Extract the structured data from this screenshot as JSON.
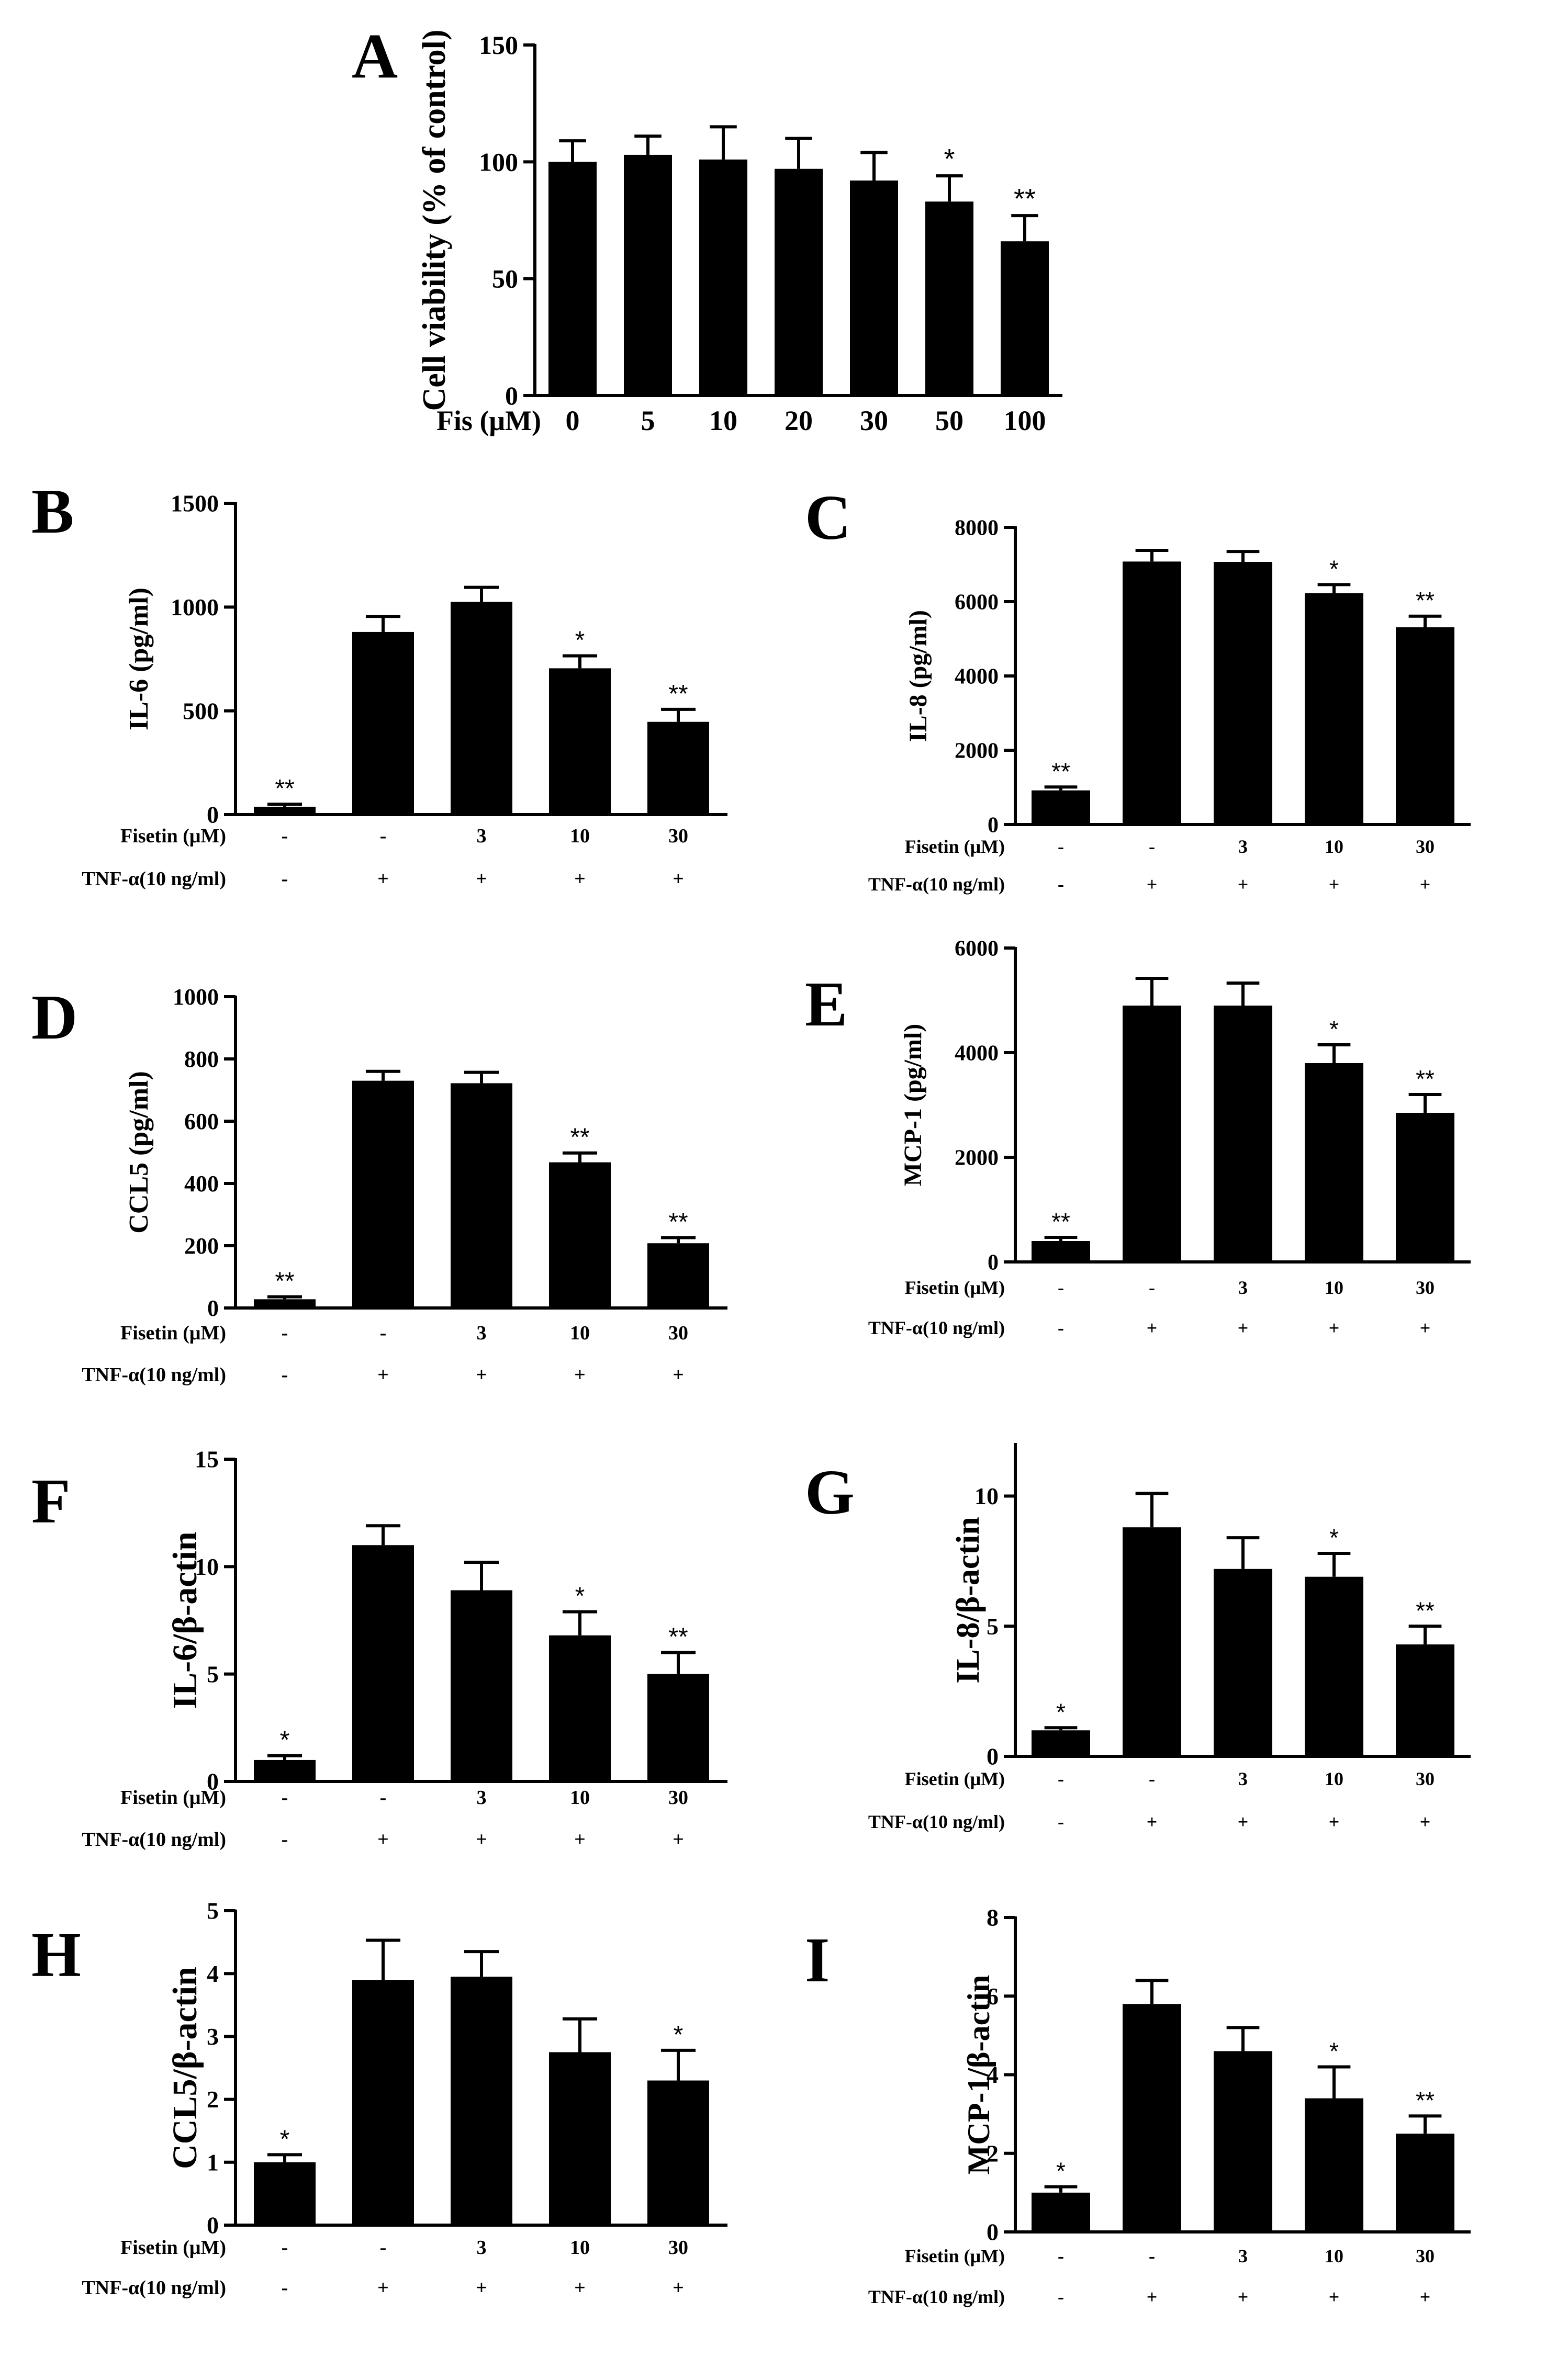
{
  "chart_data": [
    {
      "id": "A",
      "type": "bar",
      "panel_label": "A",
      "ylabel": "Cell viability (% of control)",
      "ylim": [
        0,
        150
      ],
      "yticks": [
        0,
        50,
        100,
        150
      ],
      "rows": [
        {
          "label": "Fis (μM)",
          "values": [
            "0",
            "5",
            "10",
            "20",
            "30",
            "50",
            "100"
          ]
        }
      ],
      "values": [
        100,
        103,
        101,
        97,
        92,
        83,
        66
      ],
      "errors": [
        9,
        8,
        14,
        13,
        12,
        11,
        11
      ],
      "significance": [
        "",
        "",
        "",
        "",
        "",
        "*",
        "**"
      ]
    },
    {
      "id": "B",
      "type": "bar",
      "panel_label": "B",
      "ylabel": "IL-6 (pg/ml)",
      "ylim": [
        0,
        1500
      ],
      "yticks": [
        0,
        500,
        1000,
        1500
      ],
      "rows": [
        {
          "label": "Fisetin (μM)",
          "values": [
            "-",
            "-",
            "3",
            "10",
            "30"
          ]
        },
        {
          "label": "TNF-α(10 ng/ml)",
          "values": [
            "-",
            "+",
            "+",
            "+",
            "+"
          ]
        }
      ],
      "values": [
        38,
        880,
        1025,
        705,
        447
      ],
      "errors": [
        12,
        75,
        70,
        60,
        60
      ],
      "significance": [
        "**",
        "",
        "",
        "*",
        "**"
      ]
    },
    {
      "id": "C",
      "type": "bar",
      "panel_label": "C",
      "ylabel": "IL-8 (pg/ml)",
      "ylim": [
        0,
        8000
      ],
      "yticks": [
        0,
        2000,
        4000,
        6000,
        8000
      ],
      "rows": [
        {
          "label": "Fisetin (μM)",
          "values": [
            "-",
            "-",
            "3",
            "10",
            "30"
          ]
        },
        {
          "label": "TNF-α(10 ng/ml)",
          "values": [
            "-",
            "+",
            "+",
            "+",
            "+"
          ]
        }
      ],
      "values": [
        920,
        7080,
        7070,
        6230,
        5310
      ],
      "errors": [
        90,
        300,
        280,
        230,
        300
      ],
      "significance": [
        "**",
        "",
        "",
        "*",
        "**"
      ]
    },
    {
      "id": "D",
      "type": "bar",
      "panel_label": "D",
      "ylabel": "CCL5 (pg/ml)",
      "ylim": [
        0,
        1000
      ],
      "yticks": [
        0,
        200,
        400,
        600,
        800,
        1000
      ],
      "rows": [
        {
          "label": "Fisetin (μM)",
          "values": [
            "-",
            "-",
            "3",
            "10",
            "30"
          ]
        },
        {
          "label": "TNF-α(10 ng/ml)",
          "values": [
            "-",
            "+",
            "+",
            "+",
            "+"
          ]
        }
      ],
      "values": [
        28,
        730,
        722,
        468,
        208
      ],
      "errors": [
        8,
        30,
        35,
        30,
        18
      ],
      "significance": [
        "**",
        "",
        "",
        "**",
        "**"
      ]
    },
    {
      "id": "E",
      "type": "bar",
      "panel_label": "E",
      "ylabel": "MCP-1 (pg/ml)",
      "ylim": [
        0,
        6000
      ],
      "yticks": [
        0,
        2000,
        4000,
        6000
      ],
      "rows": [
        {
          "label": "Fisetin (μM)",
          "values": [
            "-",
            "-",
            "3",
            "10",
            "30"
          ]
        },
        {
          "label": "TNF-α(10 ng/ml)",
          "values": [
            "-",
            "+",
            "+",
            "+",
            "+"
          ]
        }
      ],
      "values": [
        400,
        4900,
        4900,
        3800,
        2850
      ],
      "errors": [
        70,
        520,
        430,
        350,
        350
      ],
      "significance": [
        "**",
        "",
        "",
        "*",
        "**"
      ]
    },
    {
      "id": "F",
      "type": "bar",
      "panel_label": "F",
      "ylabel": "IL-6/β-actin",
      "ylim": [
        0,
        15
      ],
      "yticks": [
        0,
        5,
        10,
        15
      ],
      "rows": [
        {
          "label": "Fisetin (μM)",
          "values": [
            "-",
            "-",
            "3",
            "10",
            "30"
          ]
        },
        {
          "label": "TNF-α(10 ng/ml)",
          "values": [
            "-",
            "+",
            "+",
            "+",
            "+"
          ]
        }
      ],
      "values": [
        1.0,
        11.0,
        8.9,
        6.8,
        5.0
      ],
      "errors": [
        0.2,
        0.9,
        1.3,
        1.1,
        1.0
      ],
      "significance": [
        "*",
        "",
        "",
        "*",
        "**"
      ]
    },
    {
      "id": "G",
      "type": "bar",
      "panel_label": "G",
      "ylabel": "IL-8/β-actin",
      "ylim": [
        0,
        12
      ],
      "yticks": [
        0,
        5,
        10
      ],
      "rows": [
        {
          "label": "Fisetin (μM)",
          "values": [
            "-",
            "-",
            "3",
            "10",
            "30"
          ]
        },
        {
          "label": "TNF-α(10 ng/ml)",
          "values": [
            "-",
            "+",
            "+",
            "+",
            "+"
          ]
        }
      ],
      "values": [
        1.0,
        8.8,
        7.2,
        6.9,
        4.3
      ],
      "errors": [
        0.1,
        1.3,
        1.2,
        0.9,
        0.7
      ],
      "significance": [
        "*",
        "",
        "",
        "*",
        "**"
      ]
    },
    {
      "id": "H",
      "type": "bar",
      "panel_label": "H",
      "ylabel": "CCL5/β-actin",
      "ylim": [
        0,
        5
      ],
      "yticks": [
        0,
        1,
        2,
        3,
        4,
        5
      ],
      "rows": [
        {
          "label": "Fisetin (μM)",
          "values": [
            "-",
            "-",
            "3",
            "10",
            "30"
          ]
        },
        {
          "label": "TNF-α(10 ng/ml)",
          "values": [
            "-",
            "+",
            "+",
            "+",
            "+"
          ]
        }
      ],
      "values": [
        1.0,
        3.9,
        3.95,
        2.75,
        2.3
      ],
      "errors": [
        0.12,
        0.63,
        0.4,
        0.53,
        0.48
      ],
      "significance": [
        "*",
        "",
        "",
        "",
        "*"
      ]
    },
    {
      "id": "I",
      "type": "bar",
      "panel_label": "I",
      "ylabel": "MCP-1/β-actin",
      "ylim": [
        0,
        8
      ],
      "yticks": [
        0,
        2,
        4,
        6,
        8
      ],
      "rows": [
        {
          "label": "Fisetin (μM)",
          "values": [
            "-",
            "-",
            "3",
            "10",
            "30"
          ]
        },
        {
          "label": "TNF-α(10 ng/ml)",
          "values": [
            "-",
            "+",
            "+",
            "+",
            "+"
          ]
        }
      ],
      "values": [
        1.0,
        5.8,
        4.6,
        3.4,
        2.5
      ],
      "errors": [
        0.15,
        0.6,
        0.6,
        0.8,
        0.45
      ],
      "significance": [
        "*",
        "",
        "",
        "*",
        "**"
      ]
    }
  ]
}
